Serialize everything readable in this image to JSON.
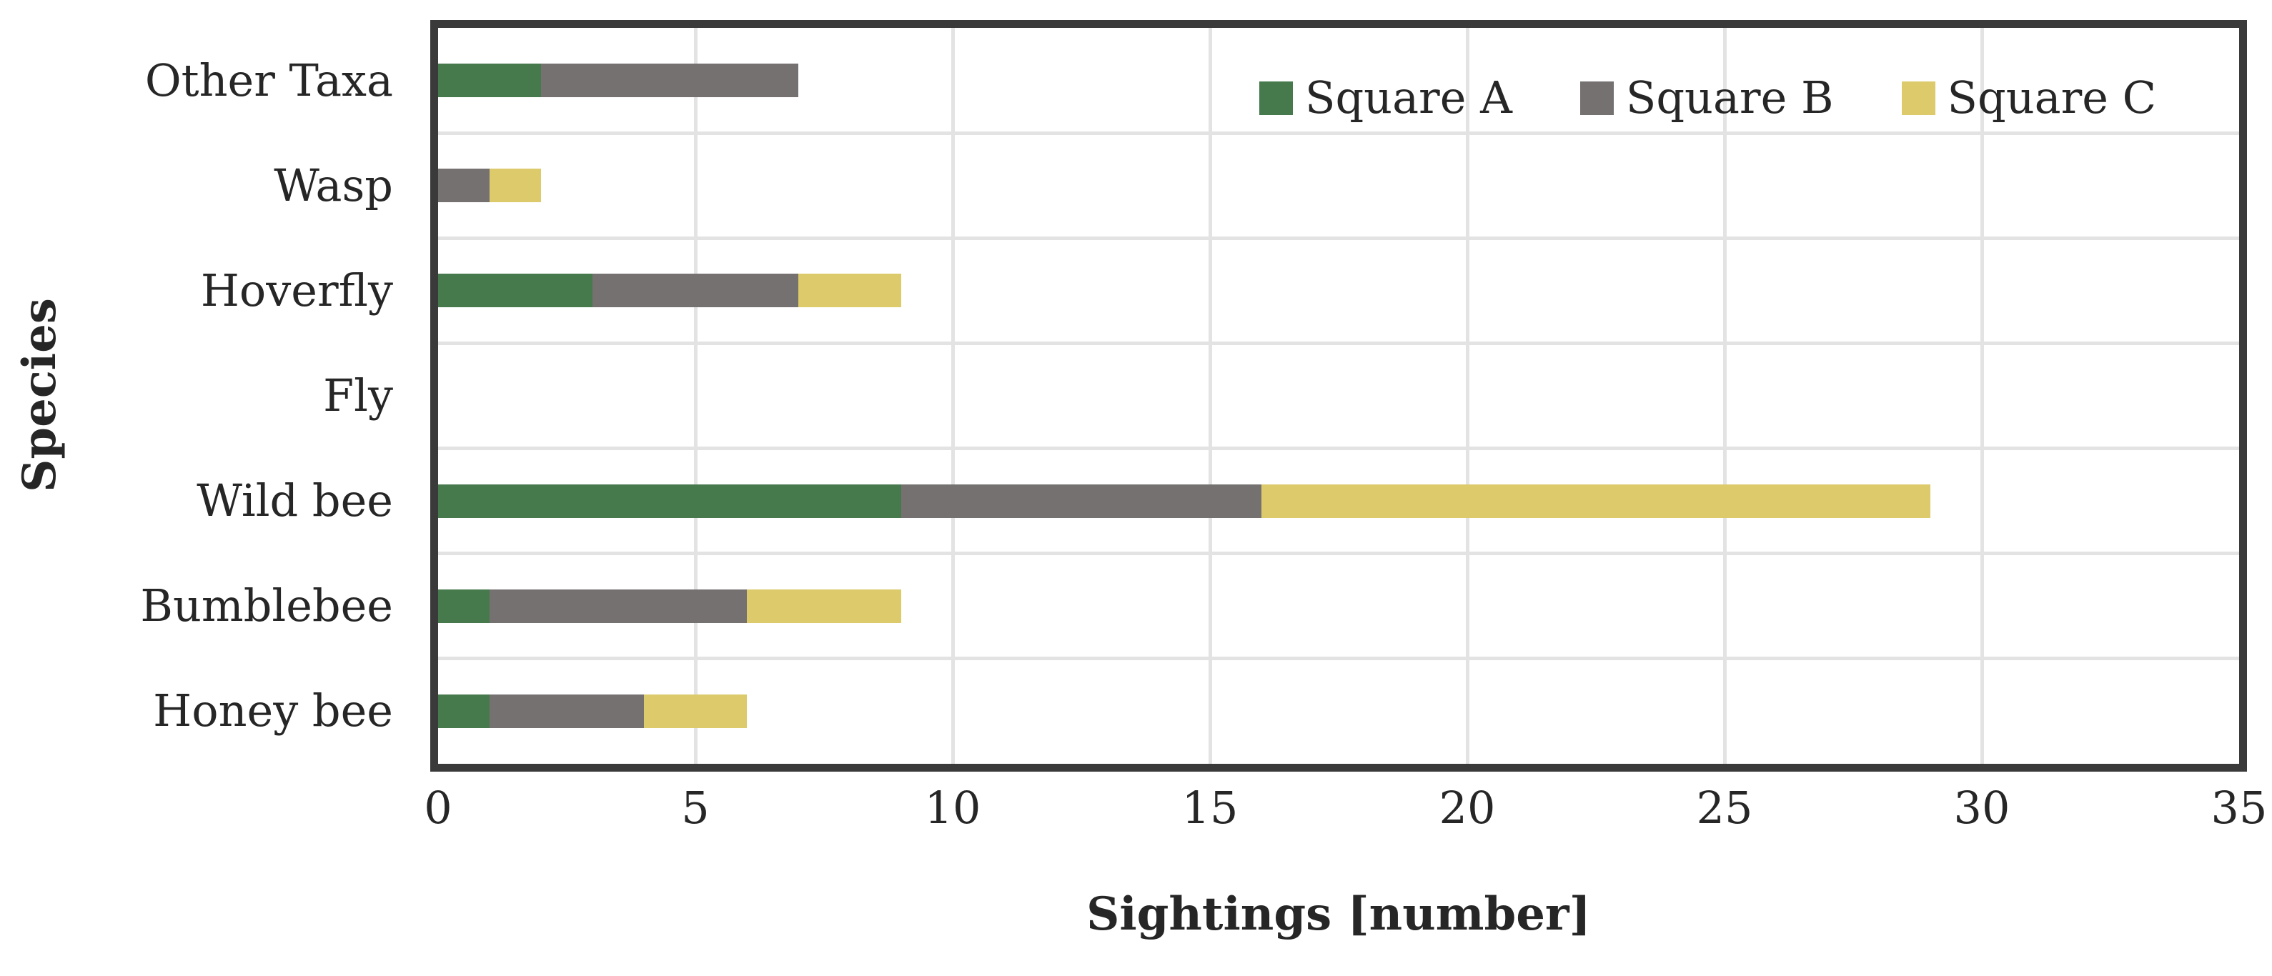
{
  "chart_data": {
    "type": "bar",
    "orientation": "horizontal",
    "stacked": true,
    "title": "",
    "xlabel": "Sightings [number]",
    "ylabel": "Species",
    "xlim": [
      0,
      35
    ],
    "xticks": [
      0,
      5,
      10,
      15,
      20,
      25,
      30,
      35
    ],
    "grid": true,
    "legend_position": "top-right-inside",
    "categories_top_to_bottom": [
      "Other Taxa",
      "Wasp",
      "Hoverfly",
      "Fly",
      "Wild bee",
      "Bumblebee",
      "Honey bee"
    ],
    "series": [
      {
        "name": "Square A",
        "color": "#467A4D",
        "values": [
          2,
          0,
          3,
          0,
          9,
          1,
          1
        ]
      },
      {
        "name": "Square B",
        "color": "#767171",
        "values": [
          5,
          1,
          4,
          0,
          7,
          5,
          3
        ]
      },
      {
        "name": "Square C",
        "color": "#DCCA6B",
        "values": [
          0,
          1,
          2,
          0,
          13,
          3,
          2
        ]
      }
    ],
    "totals_by_category": [
      7,
      2,
      9,
      0,
      29,
      9,
      6
    ]
  },
  "colors": {
    "plot_border": "#3A3A3A",
    "gridline": "#E3E3E3",
    "text": "#262626",
    "background": "#FFFFFF"
  }
}
